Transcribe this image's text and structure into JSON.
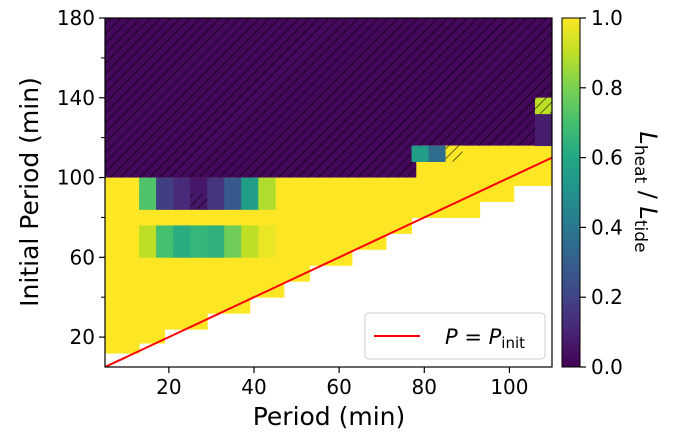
{
  "chart_data": {
    "type": "heatmap",
    "xlabel": "Period (min)",
    "ylabel": "Initial Period (min)",
    "xlim": [
      5,
      110
    ],
    "ylim": [
      5,
      180
    ],
    "x_ticks": [
      20,
      40,
      60,
      80,
      100
    ],
    "y_ticks": [
      20,
      60,
      100,
      140,
      180
    ],
    "y_minor_ticks": [
      40,
      80,
      120,
      160
    ],
    "x_tick_labels": [
      "20",
      "40",
      "60",
      "80",
      "100"
    ],
    "y_tick_labels": [
      "20",
      "60",
      "100",
      "140",
      "180"
    ],
    "colormap": "viridis",
    "colorbar": {
      "label_main": "L",
      "label_sub1": "heat",
      "label_sep": " / ",
      "label_sub2": "tide",
      "range": [
        0,
        1
      ],
      "ticks": [
        0,
        0.2,
        0.4,
        0.6,
        0.8,
        1
      ],
      "tick_labels": [
        "0.0",
        "0.2",
        "0.4",
        "0.6",
        "0.8",
        "1.0"
      ]
    },
    "grid": false,
    "cell_size": {
      "period": 4,
      "initial_period": 8
    },
    "background_region": {
      "description_value": 0.02,
      "initial_period_from": 100,
      "initial_period_to": 180,
      "period_from": 5,
      "period_to": 110,
      "hatched": true,
      "hatch_color": "#000000"
    },
    "default_value": 1.0,
    "upper_boundary": [
      {
        "x0": 5,
        "x1": 78,
        "y": 100
      },
      {
        "x0": 78,
        "x1": 106,
        "y": 116
      },
      {
        "x0": 106,
        "x1": 110,
        "y": 140
      }
    ],
    "lower_boundary_steps": [
      {
        "x0": 5,
        "x1": 13,
        "y": 12
      },
      {
        "x0": 13,
        "x1": 19,
        "y": 17
      },
      {
        "x0": 19,
        "x1": 29,
        "y": 24
      },
      {
        "x0": 29,
        "x1": 39,
        "y": 32
      },
      {
        "x0": 39,
        "x1": 47,
        "y": 40
      },
      {
        "x0": 47,
        "x1": 53,
        "y": 48
      },
      {
        "x0": 53,
        "x1": 63,
        "y": 56
      },
      {
        "x0": 63,
        "x1": 71,
        "y": 64
      },
      {
        "x0": 71,
        "x1": 77,
        "y": 72
      },
      {
        "x0": 77,
        "x1": 93,
        "y": 80
      },
      {
        "x0": 93,
        "x1": 101,
        "y": 88
      },
      {
        "x0": 101,
        "x1": 110,
        "y": 96
      }
    ],
    "cells": [
      {
        "x": 13,
        "y": 84,
        "value": 0.72
      },
      {
        "x": 17,
        "y": 84,
        "value": 0.18
      },
      {
        "x": 21,
        "y": 84,
        "value": 0.12
      },
      {
        "x": 25,
        "y": 84,
        "value": 0.06,
        "hatched": true
      },
      {
        "x": 29,
        "y": 84,
        "value": 0.15
      },
      {
        "x": 33,
        "y": 84,
        "value": 0.28
      },
      {
        "x": 37,
        "y": 84,
        "value": 0.55
      },
      {
        "x": 41,
        "y": 84,
        "value": 0.88
      },
      {
        "x": 13,
        "y": 92,
        "value": 0.72
      },
      {
        "x": 17,
        "y": 92,
        "value": 0.18
      },
      {
        "x": 21,
        "y": 92,
        "value": 0.12
      },
      {
        "x": 25,
        "y": 92,
        "value": 0.06
      },
      {
        "x": 29,
        "y": 92,
        "value": 0.15
      },
      {
        "x": 33,
        "y": 92,
        "value": 0.28
      },
      {
        "x": 37,
        "y": 92,
        "value": 0.55
      },
      {
        "x": 41,
        "y": 92,
        "value": 0.88
      },
      {
        "x": 13,
        "y": 68,
        "value": 0.9
      },
      {
        "x": 17,
        "y": 68,
        "value": 0.7
      },
      {
        "x": 21,
        "y": 68,
        "value": 0.62
      },
      {
        "x": 25,
        "y": 68,
        "value": 0.66
      },
      {
        "x": 29,
        "y": 68,
        "value": 0.64
      },
      {
        "x": 33,
        "y": 68,
        "value": 0.78
      },
      {
        "x": 37,
        "y": 68,
        "value": 0.9
      },
      {
        "x": 41,
        "y": 68,
        "value": 0.97
      },
      {
        "x": 13,
        "y": 60,
        "value": 0.9
      },
      {
        "x": 17,
        "y": 60,
        "value": 0.7
      },
      {
        "x": 21,
        "y": 60,
        "value": 0.62
      },
      {
        "x": 25,
        "y": 60,
        "value": 0.66
      },
      {
        "x": 29,
        "y": 60,
        "value": 0.64
      },
      {
        "x": 33,
        "y": 60,
        "value": 0.78
      },
      {
        "x": 37,
        "y": 60,
        "value": 0.9
      },
      {
        "x": 41,
        "y": 60,
        "value": 0.97
      },
      {
        "x": 77,
        "y": 108,
        "value": 0.55
      },
      {
        "x": 81,
        "y": 108,
        "value": 0.35
      },
      {
        "x": 85,
        "y": 108,
        "value": 1.0,
        "hatched": true
      },
      {
        "x": 106,
        "y": 116,
        "value": 0.08
      },
      {
        "x": 106,
        "y": 124,
        "value": 0.08
      },
      {
        "x": 106,
        "y": 132,
        "value": 0.9,
        "hatched": true
      }
    ],
    "series": [
      {
        "name_main": "P",
        "name_eq": " = ",
        "name_rhs": "P",
        "name_rhs_sub": "init",
        "type": "line",
        "color": "#ff0000",
        "x": [
          5,
          110
        ],
        "y": [
          5,
          110
        ]
      }
    ],
    "legend_placement": "lower-right"
  }
}
